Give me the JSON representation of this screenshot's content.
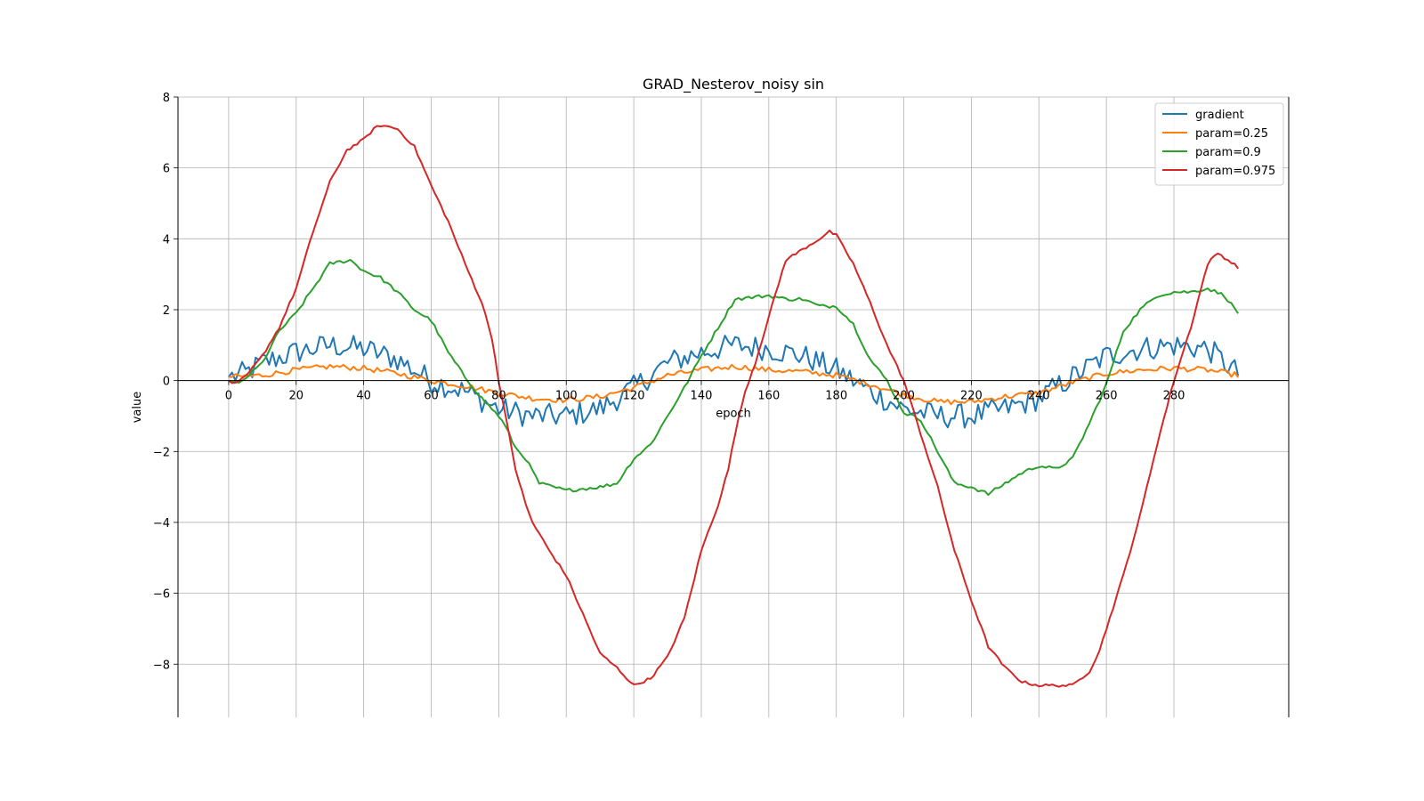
{
  "chart_data": {
    "type": "line",
    "title": "GRAD_Nesterov_noisy sin",
    "xlabel": "epoch",
    "ylabel": "value",
    "xlim": [
      -15,
      314
    ],
    "ylim": [
      -9.5,
      8
    ],
    "xticks": [
      0,
      20,
      40,
      60,
      80,
      100,
      120,
      140,
      160,
      180,
      200,
      220,
      240,
      260,
      280
    ],
    "yticks": [
      -8,
      -6,
      -4,
      -2,
      0,
      2,
      4,
      6,
      8
    ],
    "ytick_labels": [
      "−8",
      "−6",
      "−4",
      "−2",
      "0",
      "2",
      "4",
      "6",
      "8"
    ],
    "grid": true,
    "legend_position": "top-right",
    "x_range": [
      0,
      299
    ],
    "series": [
      {
        "name": "gradient",
        "color": "#1f77b4",
        "description": "noisy sine, amplitude ~1, period ~150 epochs",
        "keypoints": [
          [
            0,
            0.1
          ],
          [
            5,
            0.2
          ],
          [
            10,
            0.5
          ],
          [
            20,
            0.8
          ],
          [
            30,
            1.0
          ],
          [
            40,
            0.9
          ],
          [
            50,
            0.6
          ],
          [
            60,
            0.0
          ],
          [
            70,
            -0.3
          ],
          [
            80,
            -0.8
          ],
          [
            90,
            -1.0
          ],
          [
            100,
            -1.0
          ],
          [
            110,
            -0.8
          ],
          [
            120,
            -0.2
          ],
          [
            130,
            0.5
          ],
          [
            140,
            0.8
          ],
          [
            150,
            1.0
          ],
          [
            160,
            0.9
          ],
          [
            170,
            0.7
          ],
          [
            180,
            0.3
          ],
          [
            190,
            -0.3
          ],
          [
            200,
            -0.8
          ],
          [
            210,
            -1.0
          ],
          [
            220,
            -1.0
          ],
          [
            230,
            -0.8
          ],
          [
            240,
            -0.5
          ],
          [
            250,
            0.1
          ],
          [
            260,
            0.7
          ],
          [
            270,
            0.9
          ],
          [
            280,
            1.0
          ],
          [
            290,
            0.9
          ],
          [
            299,
            0.2
          ]
        ]
      },
      {
        "name": "param=0.25",
        "color": "#ff7f0e",
        "description": "smoothed gradient, amplitude ~0.4",
        "keypoints": [
          [
            0,
            0.1
          ],
          [
            10,
            0.15
          ],
          [
            20,
            0.3
          ],
          [
            30,
            0.4
          ],
          [
            40,
            0.35
          ],
          [
            50,
            0.2
          ],
          [
            60,
            0.0
          ],
          [
            70,
            -0.15
          ],
          [
            80,
            -0.35
          ],
          [
            90,
            -0.5
          ],
          [
            100,
            -0.55
          ],
          [
            110,
            -0.45
          ],
          [
            120,
            -0.2
          ],
          [
            130,
            0.15
          ],
          [
            140,
            0.3
          ],
          [
            150,
            0.4
          ],
          [
            160,
            0.3
          ],
          [
            170,
            0.25
          ],
          [
            180,
            0.15
          ],
          [
            190,
            -0.1
          ],
          [
            200,
            -0.4
          ],
          [
            210,
            -0.6
          ],
          [
            220,
            -0.6
          ],
          [
            230,
            -0.45
          ],
          [
            240,
            -0.35
          ],
          [
            250,
            -0.05
          ],
          [
            260,
            0.2
          ],
          [
            270,
            0.3
          ],
          [
            280,
            0.35
          ],
          [
            290,
            0.3
          ],
          [
            299,
            0.15
          ]
        ]
      },
      {
        "name": "param=0.9",
        "color": "#2ca02c",
        "description": "momentum accumulation, amplitude ~3",
        "keypoints": [
          [
            0,
            0.0
          ],
          [
            3,
            -0.1
          ],
          [
            10,
            0.5
          ],
          [
            15,
            1.4
          ],
          [
            20,
            1.9
          ],
          [
            30,
            3.3
          ],
          [
            36,
            3.4
          ],
          [
            40,
            3.1
          ],
          [
            45,
            2.9
          ],
          [
            50,
            2.5
          ],
          [
            55,
            2.0
          ],
          [
            60,
            1.7
          ],
          [
            65,
            0.8
          ],
          [
            70,
            0.1
          ],
          [
            75,
            -0.5
          ],
          [
            80,
            -1.0
          ],
          [
            82,
            -1.3
          ],
          [
            85,
            -1.9
          ],
          [
            88,
            -2.2
          ],
          [
            92,
            -2.9
          ],
          [
            100,
            -3.1
          ],
          [
            110,
            -3.0
          ],
          [
            115,
            -2.9
          ],
          [
            120,
            -2.2
          ],
          [
            125,
            -1.8
          ],
          [
            130,
            -1.0
          ],
          [
            135,
            -0.2
          ],
          [
            140,
            0.7
          ],
          [
            145,
            1.5
          ],
          [
            150,
            2.3
          ],
          [
            160,
            2.4
          ],
          [
            165,
            2.3
          ],
          [
            170,
            2.3
          ],
          [
            175,
            2.1
          ],
          [
            180,
            2.1
          ],
          [
            185,
            1.6
          ],
          [
            190,
            0.6
          ],
          [
            195,
            0.0
          ],
          [
            200,
            -0.9
          ],
          [
            205,
            -1.1
          ],
          [
            210,
            -2.0
          ],
          [
            215,
            -2.9
          ],
          [
            220,
            -3.0
          ],
          [
            225,
            -3.2
          ],
          [
            230,
            -2.9
          ],
          [
            235,
            -2.6
          ],
          [
            240,
            -2.4
          ],
          [
            245,
            -2.5
          ],
          [
            250,
            -2.2
          ],
          [
            255,
            -1.2
          ],
          [
            260,
            -0.1
          ],
          [
            265,
            1.4
          ],
          [
            270,
            2.0
          ],
          [
            275,
            2.4
          ],
          [
            280,
            2.5
          ],
          [
            285,
            2.5
          ],
          [
            290,
            2.6
          ],
          [
            295,
            2.4
          ],
          [
            299,
            1.9
          ]
        ]
      },
      {
        "name": "param=0.975",
        "color": "#d62728",
        "description": "high momentum, amplitude ~7-8.7",
        "keypoints": [
          [
            0,
            0.0
          ],
          [
            2,
            -0.1
          ],
          [
            5,
            0.1
          ],
          [
            10,
            0.7
          ],
          [
            15,
            1.5
          ],
          [
            20,
            2.6
          ],
          [
            25,
            4.2
          ],
          [
            30,
            5.6
          ],
          [
            35,
            6.5
          ],
          [
            40,
            6.8
          ],
          [
            43,
            7.1
          ],
          [
            45,
            7.2
          ],
          [
            48,
            7.15
          ],
          [
            50,
            7.1
          ],
          [
            55,
            6.6
          ],
          [
            60,
            5.5
          ],
          [
            65,
            4.5
          ],
          [
            70,
            3.3
          ],
          [
            75,
            2.2
          ],
          [
            78,
            1.2
          ],
          [
            80,
            0.0
          ],
          [
            82,
            -1.0
          ],
          [
            85,
            -2.5
          ],
          [
            88,
            -3.5
          ],
          [
            90,
            -4.0
          ],
          [
            95,
            -4.8
          ],
          [
            100,
            -5.5
          ],
          [
            105,
            -6.6
          ],
          [
            110,
            -7.7
          ],
          [
            115,
            -8.1
          ],
          [
            120,
            -8.6
          ],
          [
            125,
            -8.4
          ],
          [
            130,
            -7.8
          ],
          [
            135,
            -6.7
          ],
          [
            140,
            -4.8
          ],
          [
            145,
            -3.5
          ],
          [
            148,
            -2.5
          ],
          [
            150,
            -1.5
          ],
          [
            153,
            -0.3
          ],
          [
            156,
            0.5
          ],
          [
            160,
            1.8
          ],
          [
            165,
            3.4
          ],
          [
            170,
            3.7
          ],
          [
            175,
            4.0
          ],
          [
            178,
            4.2
          ],
          [
            180,
            4.1
          ],
          [
            185,
            3.3
          ],
          [
            190,
            2.2
          ],
          [
            195,
            1.0
          ],
          [
            198,
            0.4
          ],
          [
            200,
            0.0
          ],
          [
            205,
            -1.5
          ],
          [
            210,
            -3.0
          ],
          [
            215,
            -4.8
          ],
          [
            220,
            -6.2
          ],
          [
            225,
            -7.5
          ],
          [
            230,
            -8.1
          ],
          [
            235,
            -8.5
          ],
          [
            240,
            -8.6
          ],
          [
            245,
            -8.6
          ],
          [
            250,
            -8.6
          ],
          [
            255,
            -8.2
          ],
          [
            258,
            -7.6
          ],
          [
            260,
            -7.0
          ],
          [
            265,
            -5.5
          ],
          [
            270,
            -3.8
          ],
          [
            275,
            -1.8
          ],
          [
            280,
            0.0
          ],
          [
            285,
            1.5
          ],
          [
            290,
            3.3
          ],
          [
            293,
            3.6
          ],
          [
            296,
            3.4
          ],
          [
            299,
            3.2
          ]
        ]
      }
    ]
  }
}
